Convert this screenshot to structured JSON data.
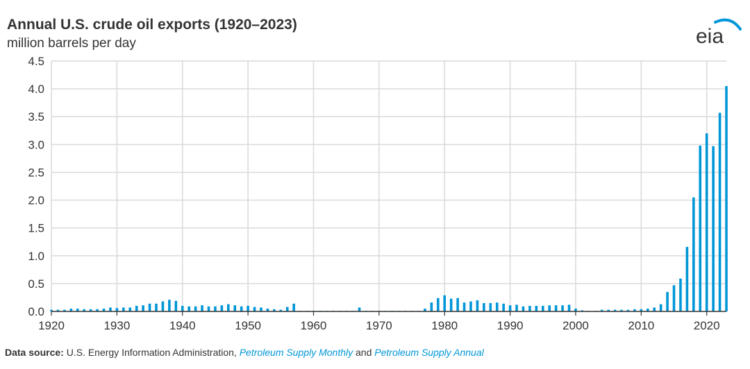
{
  "header": {
    "title": "Annual U.S. crude oil exports (1920–2023)",
    "subtitle": "million barrels per day",
    "logo_text": "eia"
  },
  "footer": {
    "label": "Data source:",
    "text1": " U.S. Energy Information Administration, ",
    "link1": "Petroleum Supply Monthly",
    "text2": " and ",
    "link2": "Petroleum Supply Annual"
  },
  "colors": {
    "bar": "#0096d7",
    "grid": "#d9d9d9",
    "axis": "#333333",
    "logo_arc": "#0096d7"
  },
  "chart_data": {
    "type": "bar",
    "title": "Annual U.S. crude oil exports (1920–2023)",
    "ylabel": "million barrels per day",
    "xlabel": "",
    "xlim": [
      1920,
      2023
    ],
    "ylim": [
      0,
      4.5
    ],
    "grid": true,
    "x_ticks": [
      "1920",
      "1930",
      "1940",
      "1950",
      "1960",
      "1970",
      "1980",
      "1990",
      "2000",
      "2010",
      "2020"
    ],
    "y_ticks": [
      "0.0",
      "0.5",
      "1.0",
      "1.5",
      "2.0",
      "2.5",
      "3.0",
      "3.5",
      "4.0",
      "4.5"
    ],
    "series": [
      {
        "x": [
          1920,
          1921,
          1922,
          1923,
          1924,
          1925,
          1926,
          1927,
          1928,
          1929,
          1930,
          1931,
          1932,
          1933,
          1934,
          1935,
          1936,
          1937,
          1938,
          1939,
          1940,
          1941,
          1942,
          1943,
          1944,
          1945,
          1946,
          1947,
          1948,
          1949,
          1950,
          1951,
          1952,
          1953,
          1954,
          1955,
          1956,
          1957,
          1958,
          1959,
          1960,
          1961,
          1962,
          1963,
          1964,
          1965,
          1966,
          1967,
          1968,
          1969,
          1970,
          1971,
          1972,
          1973,
          1974,
          1975,
          1976,
          1977,
          1978,
          1979,
          1980,
          1981,
          1982,
          1983,
          1984,
          1985,
          1986,
          1987,
          1988,
          1989,
          1990,
          1991,
          1992,
          1993,
          1994,
          1995,
          1996,
          1997,
          1998,
          1999,
          2000,
          2001,
          2002,
          2003,
          2004,
          2005,
          2006,
          2007,
          2008,
          2009,
          2010,
          2011,
          2012,
          2013,
          2014,
          2015,
          2016,
          2017,
          2018,
          2019,
          2020,
          2021,
          2022,
          2023
        ],
        "values": [
          0.03,
          0.03,
          0.03,
          0.05,
          0.05,
          0.04,
          0.04,
          0.04,
          0.05,
          0.07,
          0.06,
          0.07,
          0.07,
          0.1,
          0.11,
          0.14,
          0.14,
          0.18,
          0.21,
          0.19,
          0.1,
          0.09,
          0.09,
          0.11,
          0.09,
          0.09,
          0.11,
          0.13,
          0.11,
          0.09,
          0.1,
          0.08,
          0.07,
          0.05,
          0.04,
          0.03,
          0.08,
          0.14,
          0.01,
          0.01,
          0.01,
          0.01,
          0.01,
          0.01,
          0.01,
          0.01,
          0.01,
          0.07,
          0.01,
          0.01,
          0.01,
          0.01,
          0.01,
          0.01,
          0.01,
          0.01,
          0.01,
          0.05,
          0.16,
          0.24,
          0.29,
          0.23,
          0.24,
          0.16,
          0.18,
          0.2,
          0.15,
          0.15,
          0.16,
          0.14,
          0.11,
          0.12,
          0.09,
          0.1,
          0.1,
          0.1,
          0.11,
          0.11,
          0.11,
          0.12,
          0.05,
          0.02,
          0.01,
          0.01,
          0.03,
          0.03,
          0.03,
          0.03,
          0.03,
          0.04,
          0.04,
          0.05,
          0.07,
          0.13,
          0.35,
          0.47,
          0.59,
          1.16,
          2.05,
          2.98,
          3.2,
          2.97,
          3.57,
          4.05
        ]
      }
    ]
  }
}
